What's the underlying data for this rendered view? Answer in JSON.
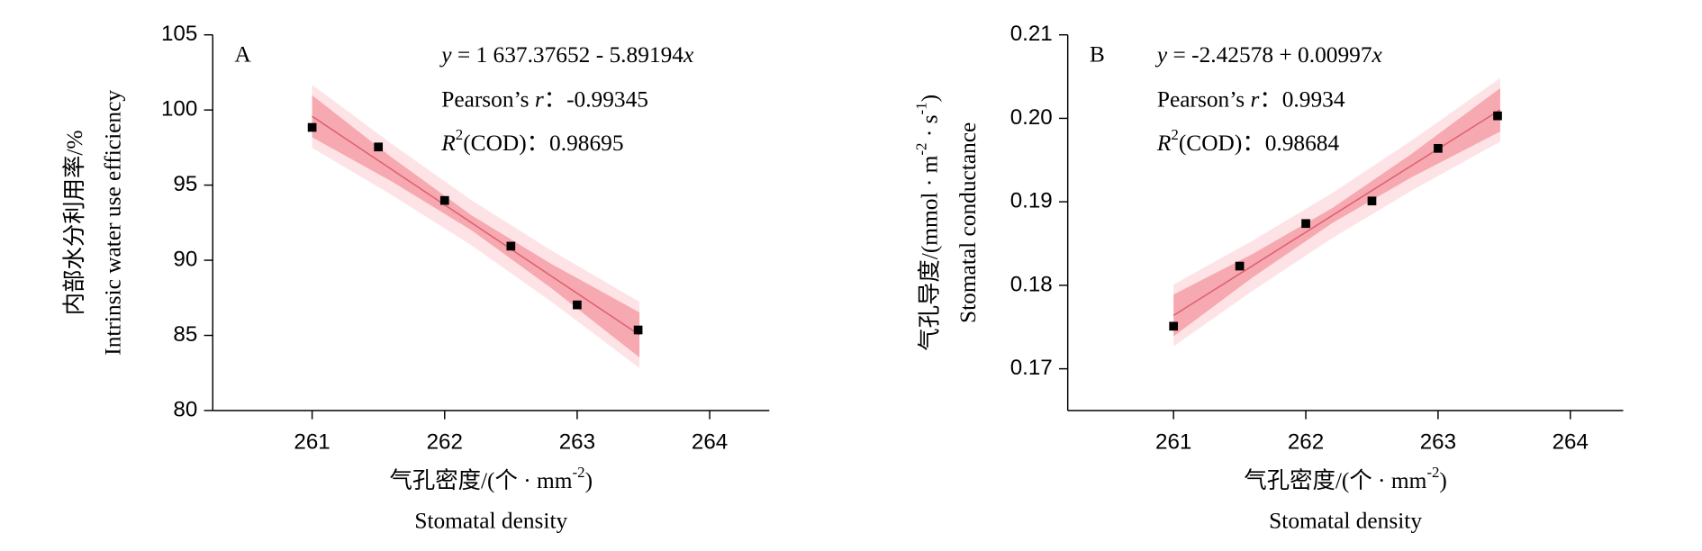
{
  "chart_data": [
    {
      "type": "scatter",
      "panel": "A",
      "equation": [
        {
          "text": "y",
          "italic": true
        },
        {
          "text": " = 1 637.37652 - 5.89194"
        },
        {
          "text": "x",
          "italic": true
        }
      ],
      "pearson": [
        {
          "text": "Pearson’s "
        },
        {
          "text": "r",
          "italic": true
        },
        {
          "text": "：-0.99345"
        }
      ],
      "r2": [
        {
          "text": "R",
          "italic": true
        },
        {
          "text": "2",
          "sup": true
        },
        {
          "text": "(COD)：0.98695"
        }
      ],
      "x_label": [
        [
          {
            "text": "气孔密度/(个 · mm"
          },
          {
            "text": "-2",
            "sup": true
          },
          {
            "text": ")"
          }
        ],
        [
          {
            "text": "Stomatal density"
          }
        ]
      ],
      "y_label": [
        [
          {
            "text": "内部水分利用率/%"
          }
        ],
        [
          {
            "text": "Intrinsic water use efficiency"
          }
        ]
      ],
      "x": [
        261,
        261.5,
        262,
        262.5,
        263,
        263.46
      ],
      "values": [
        98.84,
        97.54,
        93.98,
        90.94,
        87.03,
        85.36
      ],
      "color": "#000000",
      "fit": {
        "x": [
          261,
          263.47
        ],
        "y": [
          99.58,
          85.03
        ],
        "color": "#e06070"
      },
      "bands": [
        {
          "x": [
            261,
            261.6,
            262.2,
            262.8,
            263.47
          ],
          "upper": [
            101.68,
            97.75,
            94.01,
            90.68,
            87.23
          ],
          "lower": [
            97.48,
            94.35,
            91.01,
            87.28,
            82.83
          ],
          "color": "#fde3e5"
        },
        {
          "x": [
            261,
            261.6,
            262.2,
            262.8,
            263.47
          ],
          "upper": [
            100.98,
            96.85,
            93.01,
            89.78,
            86.53
          ],
          "lower": [
            98.18,
            95.25,
            92.01,
            88.18,
            83.53
          ],
          "color": "#f7a9b1"
        }
      ],
      "xlim": [
        260.25,
        264.45
      ],
      "xticks": [
        261,
        262,
        263,
        264
      ],
      "ylim": [
        80,
        105
      ],
      "yticks": [
        80,
        85,
        90,
        95,
        100,
        105
      ]
    },
    {
      "type": "scatter",
      "panel": "B",
      "equation": [
        {
          "text": "y",
          "italic": true
        },
        {
          "text": " = -2.42578 + 0.00997"
        },
        {
          "text": "x",
          "italic": true
        }
      ],
      "pearson": [
        {
          "text": "Pearson’s "
        },
        {
          "text": "r",
          "italic": true
        },
        {
          "text": "：0.9934"
        }
      ],
      "r2": [
        {
          "text": "R",
          "italic": true
        },
        {
          "text": "2",
          "sup": true
        },
        {
          "text": "(COD)：0.98684"
        }
      ],
      "x_label": [
        [
          {
            "text": "气孔密度/(个 · mm"
          },
          {
            "text": "-2",
            "sup": true
          },
          {
            "text": ")"
          }
        ],
        [
          {
            "text": "Stomatal density"
          }
        ]
      ],
      "y_label": [
        [
          {
            "text": "气孔导度/(mmol · m"
          },
          {
            "text": "-2",
            "sup": true
          },
          {
            "text": " · s"
          },
          {
            "text": "-1",
            "sup": true
          },
          {
            "text": ")"
          }
        ],
        [
          {
            "text": "Stomatal conductance"
          }
        ]
      ],
      "x": [
        261,
        261.5,
        262,
        262.5,
        263,
        263.45
      ],
      "values": [
        0.1751,
        0.1823,
        0.1874,
        0.1901,
        0.1964,
        0.2003
      ],
      "color": "#000000",
      "fit": {
        "x": [
          261,
          263.47
        ],
        "y": [
          0.17639,
          0.20102
        ],
        "color": "#e06070"
      },
      "bands": [
        {
          "x": [
            261,
            261.6,
            262.2,
            262.8,
            263.47
          ],
          "upper": [
            0.18009,
            0.18537,
            0.19105,
            0.19734,
            0.20482
          ],
          "lower": [
            0.17269,
            0.17937,
            0.18565,
            0.19134,
            0.19722
          ],
          "color": "#fde3e5"
        },
        {
          "x": [
            261,
            261.6,
            262.2,
            262.8,
            263.47
          ],
          "upper": [
            0.17889,
            0.18377,
            0.18925,
            0.19574,
            0.20362
          ],
          "lower": [
            0.17389,
            0.18097,
            0.18745,
            0.19294,
            0.19842
          ],
          "color": "#f7a9b1"
        }
      ],
      "xlim": [
        260.2,
        264.4
      ],
      "xticks": [
        261,
        262,
        263,
        264
      ],
      "ylim": [
        0.165,
        0.21
      ],
      "yticks": [
        0.17,
        0.18,
        0.19,
        {
          "value": 0.2,
          "label": "0.20"
        },
        0.21
      ]
    }
  ]
}
